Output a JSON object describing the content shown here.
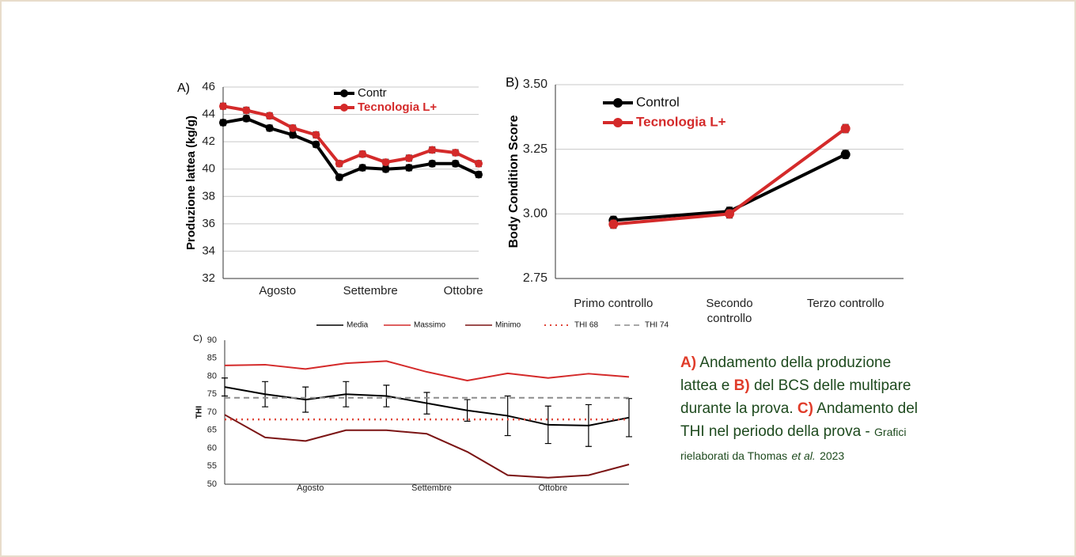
{
  "chart_data": [
    {
      "type": "line",
      "label": "A)",
      "ylabel": "Produzione lattea (kg/g)",
      "categories": [
        null,
        null,
        "Agosto",
        null,
        null,
        null,
        "Settembre",
        null,
        null,
        null,
        "Ottobre",
        null
      ],
      "ylim": [
        32,
        46
      ],
      "yticks": [
        32,
        34,
        36,
        38,
        40,
        42,
        44,
        46
      ],
      "grid": true,
      "marker": true,
      "legend": "top",
      "series": [
        {
          "name": "Contr",
          "color": "#000000",
          "values": [
            43.4,
            43.7,
            43.0,
            42.5,
            41.8,
            39.4,
            40.1,
            40.0,
            40.1,
            40.4,
            40.4,
            39.6
          ],
          "errors": [
            0.2,
            0.2,
            0.2,
            0.2,
            0.2,
            0.2,
            0.2,
            0.2,
            0.2,
            0.2,
            0.2,
            0.2
          ]
        },
        {
          "name": "Tecnologia L+",
          "color": "#d42a2a",
          "values": [
            44.6,
            44.3,
            43.9,
            43.0,
            42.5,
            40.4,
            41.1,
            40.5,
            40.8,
            41.4,
            41.2,
            40.4
          ],
          "errors": [
            0.2,
            0.2,
            0.2,
            0.2,
            0.2,
            0.2,
            0.2,
            0.2,
            0.2,
            0.2,
            0.2,
            0.2
          ]
        }
      ]
    },
    {
      "type": "line",
      "label": "B)",
      "ylabel": "Body Condition Score",
      "categories": [
        "Primo controllo",
        "Secondo controllo",
        "Terzo controllo"
      ],
      "ylim": [
        2.75,
        3.5
      ],
      "yticks": [
        {
          "value": 2.75,
          "label": "2.75"
        },
        {
          "value": 3,
          "label": "3.00"
        },
        {
          "value": 3.25,
          "label": "3.25"
        },
        {
          "value": 3.5,
          "label": "3.50"
        }
      ],
      "grid": true,
      "marker": true,
      "legend": "top left",
      "series": [
        {
          "name": "Control",
          "color": "#000000",
          "values": [
            2.975,
            3.01,
            3.23
          ],
          "errors": [
            0.015,
            0.015,
            0.015
          ]
        },
        {
          "name": "Tecnologia L+",
          "color": "#d42a2a",
          "values": [
            2.96,
            3.0,
            3.33
          ],
          "errors": [
            0.015,
            0.015,
            0.015
          ]
        }
      ]
    },
    {
      "type": "line",
      "label": "C)",
      "ylabel": "THI",
      "categories": [
        null,
        null,
        "Agosto",
        null,
        null,
        "Settembre",
        null,
        null,
        "Ottobre",
        null,
        null
      ],
      "ylim": [
        50,
        90
      ],
      "yticks": [
        50,
        55,
        60,
        65,
        70,
        75,
        80,
        85,
        90
      ],
      "grid": false,
      "marker": false,
      "legend": "top",
      "series": [
        {
          "name": "Media",
          "color": "#000000",
          "values": [
            77,
            75,
            73.5,
            75,
            74.5,
            72.5,
            70.5,
            69,
            66.5,
            66.3,
            68.5
          ],
          "errors": [
            2.5,
            3.5,
            3.5,
            3.5,
            3,
            3,
            3,
            5.5,
            5.2,
            5.8,
            5.3
          ]
        },
        {
          "name": "Massimo",
          "color": "#d42a2a",
          "values": [
            83,
            83.2,
            82,
            83.6,
            84.2,
            81.2,
            78.8,
            80.8,
            79.5,
            80.7,
            79.8
          ]
        },
        {
          "name": "Minimo",
          "color": "#7b1414",
          "values": [
            69.3,
            63,
            62,
            65,
            65,
            64,
            59,
            52.5,
            51.8,
            52.5,
            55.5
          ]
        },
        {
          "name": "THI 68",
          "color": "#e0463a",
          "line_style": "dotted",
          "values": [
            68,
            68,
            68,
            68,
            68,
            68,
            68,
            68,
            68,
            68,
            68
          ]
        },
        {
          "name": "THI 74",
          "color": "#8c8c8c",
          "line_style": "dashed",
          "values": [
            74,
            74,
            74,
            74,
            74,
            74,
            74,
            74,
            74,
            74,
            74
          ]
        }
      ]
    }
  ],
  "caption": {
    "a": "A)",
    "t1": "Andamento della produzione lattea e",
    "b": "B)",
    "t2": "del BCS delle multipare durante la prova.",
    "c": "C)",
    "t3": "Andamento del THI nel periodo della prova -",
    "s1": "Grafici rielaborati da Thomas",
    "s2": "et al.",
    "s3": "2023"
  }
}
